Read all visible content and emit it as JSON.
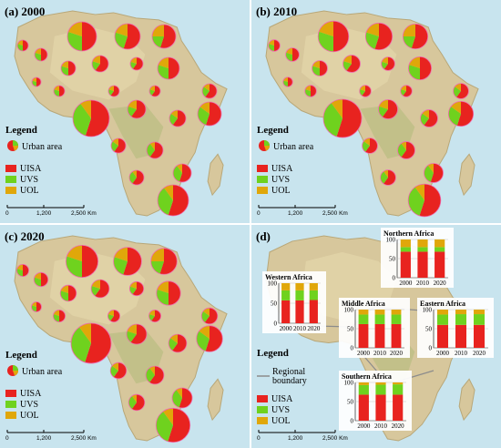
{
  "panels": [
    {
      "label": "(a) 2000"
    },
    {
      "label": "(b) 2010"
    },
    {
      "label": "(c) 2020"
    },
    {
      "label": "(d)"
    }
  ],
  "legend": {
    "title": "Legend",
    "urban_area": "Urban area",
    "regional_boundary": "Regional boundary",
    "items": [
      {
        "label": "UISA",
        "color": "#e8231f"
      },
      {
        "label": "UVS",
        "color": "#6fd21e"
      },
      {
        "label": "UOL",
        "color": "#e0a70a"
      }
    ]
  },
  "scale_bar": {
    "ticks": [
      "0",
      "1,200",
      "2,500 Km"
    ]
  },
  "colors": {
    "uisa": "#e8231f",
    "uvs": "#6fd21e",
    "uol": "#e0a70a",
    "ocean": "#c8e4ee",
    "land": "#d7c79c"
  },
  "chart_data": {
    "type": "bar",
    "stacked": true,
    "categories": [
      "2000",
      "2010",
      "2020"
    ],
    "ylim": [
      0,
      100
    ],
    "yticks": [
      0,
      50,
      100
    ],
    "regions": [
      {
        "name": "Western Africa",
        "uisa": [
          57,
          57,
          58
        ],
        "uvs": [
          25,
          25,
          24
        ],
        "uol": [
          18,
          18,
          18
        ]
      },
      {
        "name": "Northern Africa",
        "uisa": [
          68,
          68,
          68
        ],
        "uvs": [
          12,
          12,
          12
        ],
        "uol": [
          20,
          20,
          20
        ]
      },
      {
        "name": "Middle Africa",
        "uisa": [
          62,
          62,
          62
        ],
        "uvs": [
          25,
          25,
          25
        ],
        "uol": [
          13,
          13,
          13
        ]
      },
      {
        "name": "Eastern Africa",
        "uisa": [
          60,
          60,
          60
        ],
        "uvs": [
          27,
          28,
          28
        ],
        "uol": [
          13,
          12,
          12
        ]
      },
      {
        "name": "Southern Africa",
        "uisa": [
          68,
          68,
          68
        ],
        "uvs": [
          25,
          26,
          27
        ],
        "uol": [
          7,
          6,
          5
        ]
      }
    ]
  }
}
